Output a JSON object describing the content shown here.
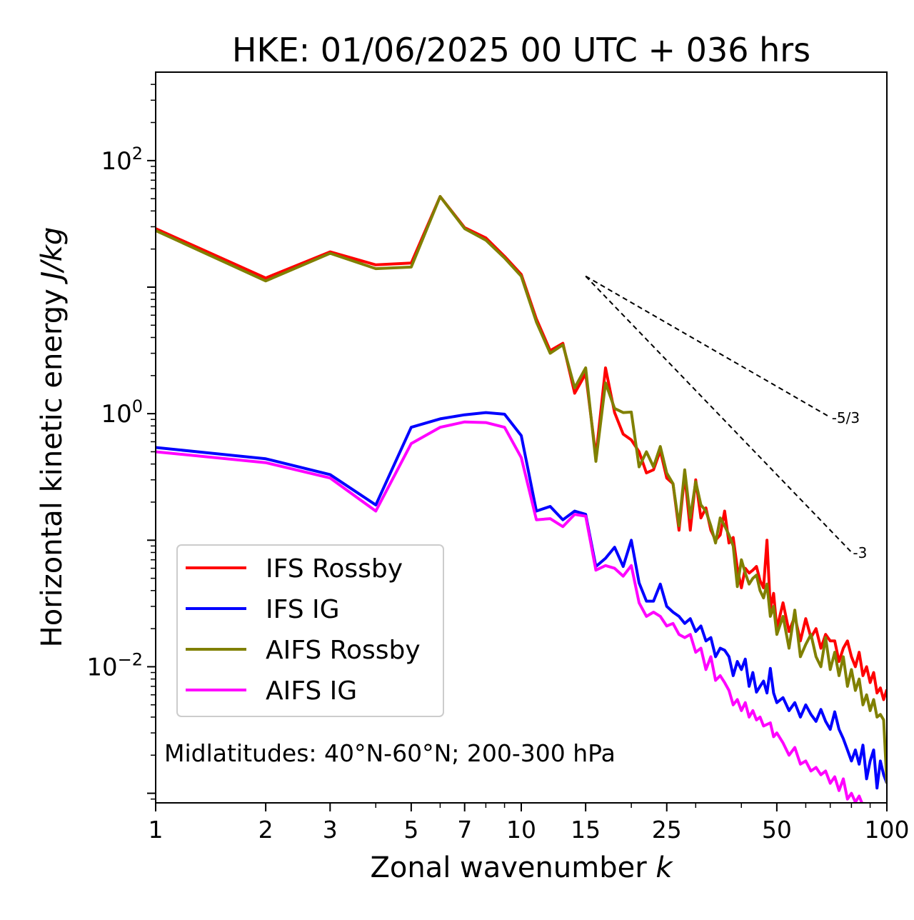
{
  "chart_data": {
    "type": "line",
    "title": "HKE: 01/06/2025 00 UTC + 036 hrs",
    "xlabel": "Zonal wavenumber k",
    "xlabel_main": "Zonal wavenumber ",
    "xlabel_var": "k",
    "ylabel": "Horizontal kinetic energy J/kg",
    "ylabel_main": "Horizontal kinetic energy ",
    "ylabel_unit": "J/kg",
    "xscale": "log",
    "yscale": "log",
    "xlim": [
      1,
      100
    ],
    "ylim": [
      0.00084,
      500
    ],
    "xticks": [
      1,
      2,
      3,
      5,
      7,
      10,
      15,
      25,
      50,
      100
    ],
    "xtick_labels": [
      "1",
      "2",
      "3",
      "5",
      "7",
      "10",
      "15",
      "25",
      "50",
      "100"
    ],
    "yticks": [
      {
        "value": 100,
        "base": "10",
        "exp": "2"
      },
      {
        "value": 1,
        "base": "10",
        "exp": "0"
      },
      {
        "value": 0.01,
        "base": "10",
        "exp": "−2"
      }
    ],
    "grid": false,
    "legend_position": "lower-left",
    "annotation": "Midlatitudes: 40°N-60°N; 200-300 hPa",
    "reference_slopes": [
      {
        "label": "-5/3",
        "slope": -1.6667,
        "x_start": 15,
        "x_end": 70,
        "y_start": 12.2
      },
      {
        "label": "-3",
        "slope": -3,
        "x_start": 15,
        "x_end": 80,
        "y_start": 12.2
      }
    ],
    "series": [
      {
        "name": "IFS Rossby",
        "color": "#ff0000",
        "x": [
          1,
          2,
          3,
          4,
          5,
          6,
          7,
          8,
          9,
          10,
          11,
          12,
          13,
          14,
          15,
          16,
          17,
          18,
          19,
          20,
          21,
          22,
          23,
          24,
          25,
          26,
          27,
          28,
          29,
          30,
          31,
          32,
          33,
          34,
          35,
          36,
          37,
          38,
          39,
          40,
          41,
          42,
          43,
          44,
          45,
          46,
          47,
          48,
          49,
          50,
          52,
          54,
          56,
          58,
          60,
          62,
          64,
          66,
          68,
          70,
          72,
          74,
          76,
          78,
          80,
          82,
          84,
          86,
          88,
          90,
          92,
          94,
          96,
          98,
          100
        ],
        "y": [
          29,
          11.8,
          19,
          15,
          15.5,
          52,
          29.5,
          24.5,
          17.5,
          12.6,
          5.6,
          3.15,
          3.6,
          1.45,
          2.07,
          0.46,
          2.3,
          1.02,
          0.69,
          0.62,
          0.5,
          0.34,
          0.36,
          0.51,
          0.31,
          0.28,
          0.12,
          0.33,
          0.12,
          0.3,
          0.15,
          0.18,
          0.12,
          0.1,
          0.11,
          0.17,
          0.095,
          0.105,
          0.06,
          0.042,
          0.06,
          0.055,
          0.058,
          0.062,
          0.048,
          0.042,
          0.1,
          0.029,
          0.038,
          0.02,
          0.032,
          0.019,
          0.025,
          0.016,
          0.024,
          0.017,
          0.02,
          0.014,
          0.018,
          0.016,
          0.016,
          0.011,
          0.014,
          0.016,
          0.012,
          0.01,
          0.013,
          0.0085,
          0.01,
          0.0075,
          0.009,
          0.0062,
          0.0068,
          0.0055,
          0.0066
        ]
      },
      {
        "name": "IFS IG",
        "color": "#0000ff",
        "x": [
          1,
          2,
          3,
          4,
          5,
          6,
          7,
          8,
          9,
          10,
          11,
          12,
          13,
          14,
          15,
          16,
          17,
          18,
          19,
          20,
          21,
          22,
          23,
          24,
          25,
          26,
          27,
          28,
          29,
          30,
          31,
          32,
          33,
          34,
          35,
          36,
          37,
          38,
          39,
          40,
          41,
          42,
          43,
          44,
          45,
          46,
          47,
          48,
          49,
          50,
          52,
          54,
          56,
          58,
          60,
          62,
          64,
          66,
          68,
          70,
          72,
          74,
          76,
          78,
          80,
          82,
          84,
          86,
          88,
          90,
          92,
          94,
          96,
          98,
          100
        ],
        "y": [
          0.54,
          0.44,
          0.33,
          0.19,
          0.78,
          0.91,
          0.98,
          1.02,
          0.99,
          0.67,
          0.17,
          0.185,
          0.145,
          0.17,
          0.16,
          0.062,
          0.072,
          0.088,
          0.062,
          0.1,
          0.046,
          0.033,
          0.033,
          0.045,
          0.03,
          0.027,
          0.025,
          0.022,
          0.024,
          0.019,
          0.021,
          0.016,
          0.017,
          0.012,
          0.014,
          0.0135,
          0.012,
          0.0085,
          0.011,
          0.0095,
          0.0115,
          0.007,
          0.009,
          0.0063,
          0.007,
          0.0077,
          0.0062,
          0.0097,
          0.0062,
          0.0052,
          0.0057,
          0.0045,
          0.0052,
          0.004,
          0.005,
          0.0042,
          0.0037,
          0.0046,
          0.0037,
          0.0032,
          0.0044,
          0.0032,
          0.0027,
          0.0022,
          0.0018,
          0.0022,
          0.0017,
          0.0024,
          0.0013,
          0.0018,
          0.0022,
          0.0011,
          0.0018,
          0.0014,
          0.0012
        ]
      },
      {
        "name": "AIFS Rossby",
        "color": "#808000",
        "x": [
          1,
          2,
          3,
          4,
          5,
          6,
          7,
          8,
          9,
          10,
          11,
          12,
          13,
          14,
          15,
          16,
          17,
          18,
          19,
          20,
          21,
          22,
          23,
          24,
          25,
          26,
          27,
          28,
          29,
          30,
          31,
          32,
          33,
          34,
          35,
          36,
          37,
          38,
          39,
          40,
          41,
          42,
          43,
          44,
          45,
          46,
          47,
          48,
          49,
          50,
          52,
          54,
          56,
          58,
          60,
          62,
          64,
          66,
          68,
          70,
          72,
          74,
          76,
          78,
          80,
          82,
          84,
          86,
          88,
          90,
          92,
          94,
          96,
          98,
          100
        ],
        "y": [
          28,
          11.2,
          18.5,
          14,
          14.4,
          52,
          29,
          23.5,
          17,
          12.2,
          5.3,
          3,
          3.5,
          1.6,
          2.3,
          0.42,
          1.75,
          1.1,
          1.02,
          1.03,
          0.38,
          0.5,
          0.38,
          0.55,
          0.34,
          0.28,
          0.13,
          0.36,
          0.15,
          0.29,
          0.19,
          0.17,
          0.13,
          0.095,
          0.15,
          0.13,
          0.11,
          0.09,
          0.043,
          0.07,
          0.055,
          0.045,
          0.05,
          0.053,
          0.04,
          0.035,
          0.045,
          0.025,
          0.03,
          0.018,
          0.025,
          0.014,
          0.028,
          0.012,
          0.015,
          0.018,
          0.012,
          0.01,
          0.017,
          0.0095,
          0.013,
          0.0085,
          0.012,
          0.007,
          0.0095,
          0.0065,
          0.008,
          0.005,
          0.006,
          0.0045,
          0.0055,
          0.004,
          0.0042,
          0.0038,
          0.0012
        ]
      },
      {
        "name": "AIFS IG",
        "color": "#ff00ff",
        "x": [
          1,
          2,
          3,
          4,
          5,
          6,
          7,
          8,
          9,
          10,
          11,
          12,
          13,
          14,
          15,
          16,
          17,
          18,
          19,
          20,
          21,
          22,
          23,
          24,
          25,
          26,
          27,
          28,
          29,
          30,
          31,
          32,
          33,
          34,
          35,
          36,
          37,
          38,
          39,
          40,
          41,
          42,
          43,
          44,
          45,
          46,
          47,
          48,
          49,
          50,
          52,
          54,
          56,
          58,
          60,
          62,
          64,
          66,
          68,
          70,
          72,
          74,
          76,
          78,
          80,
          82,
          84,
          86
        ],
        "y": [
          0.5,
          0.41,
          0.31,
          0.17,
          0.58,
          0.78,
          0.86,
          0.85,
          0.78,
          0.45,
          0.145,
          0.148,
          0.128,
          0.16,
          0.155,
          0.058,
          0.063,
          0.06,
          0.052,
          0.063,
          0.032,
          0.025,
          0.027,
          0.025,
          0.021,
          0.022,
          0.018,
          0.017,
          0.018,
          0.013,
          0.014,
          0.0095,
          0.012,
          0.0078,
          0.0085,
          0.0075,
          0.0065,
          0.005,
          0.0055,
          0.0045,
          0.0052,
          0.004,
          0.0045,
          0.0038,
          0.004,
          0.0034,
          0.0035,
          0.0036,
          0.0028,
          0.003,
          0.0025,
          0.002,
          0.0023,
          0.0017,
          0.0018,
          0.0015,
          0.0016,
          0.0014,
          0.0015,
          0.0012,
          0.00135,
          0.00105,
          0.0013,
          0.0009,
          0.001,
          0.00085,
          0.00095,
          0.0008
        ]
      }
    ]
  }
}
